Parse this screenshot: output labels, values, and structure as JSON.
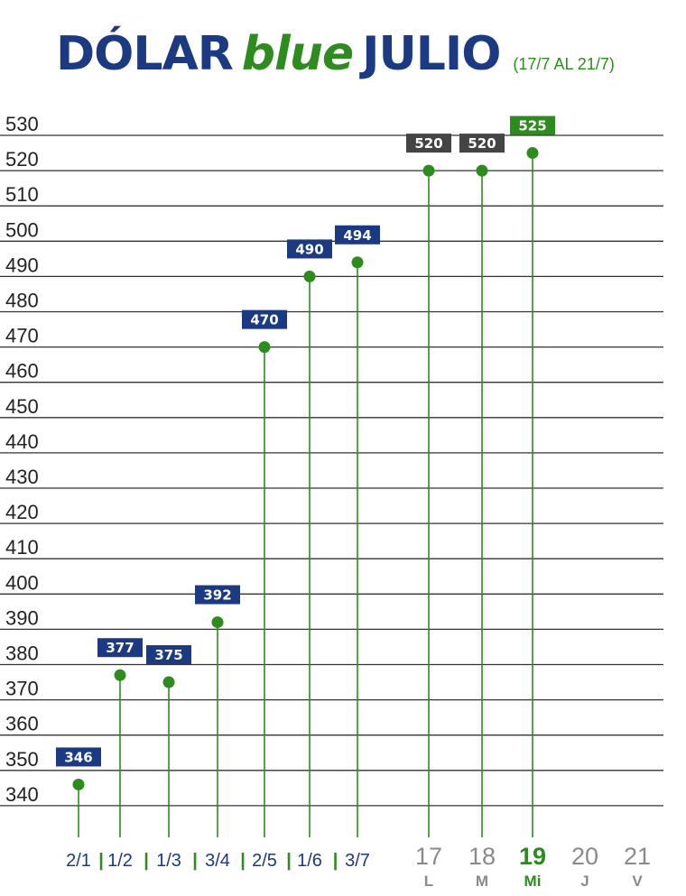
{
  "title": {
    "part1": "DÓLAR",
    "part2": "blue",
    "part3": "JULIO",
    "subtitle": "(17/7 AL 21/7)"
  },
  "colors": {
    "navy": "#1b3a82",
    "green": "#2e8b1e",
    "dark_gray": "#444444",
    "gray": "#8a8a8a",
    "line": "#333333"
  },
  "chart_data": {
    "type": "scatter",
    "title": "DÓLAR blue JULIO",
    "subtitle": "(17/7 AL 21/7)",
    "ylim": [
      340,
      530
    ],
    "yticks": [
      530,
      520,
      510,
      500,
      490,
      480,
      470,
      460,
      450,
      440,
      430,
      420,
      410,
      400,
      390,
      380,
      370,
      360,
      350,
      340
    ],
    "grid": true,
    "points": [
      {
        "label": "2/1",
        "value": 346,
        "style": "navy"
      },
      {
        "label": "1/2",
        "value": 377,
        "style": "navy"
      },
      {
        "label": "1/3",
        "value": 375,
        "style": "navy"
      },
      {
        "label": "3/4",
        "value": 392,
        "style": "navy"
      },
      {
        "label": "2/5",
        "value": 470,
        "style": "navy"
      },
      {
        "label": "1/6",
        "value": 490,
        "style": "navy"
      },
      {
        "label": "3/7",
        "value": 494,
        "style": "navy"
      },
      {
        "label": "17",
        "day": "L",
        "value": 520,
        "style": "gray"
      },
      {
        "label": "18",
        "day": "M",
        "value": 520,
        "style": "gray"
      },
      {
        "label": "19",
        "day": "Mi",
        "value": 525,
        "style": "green"
      },
      {
        "label": "20",
        "day": "J",
        "value": null,
        "style": "future"
      },
      {
        "label": "21",
        "day": "V",
        "value": null,
        "style": "future"
      }
    ],
    "separator": "|"
  }
}
